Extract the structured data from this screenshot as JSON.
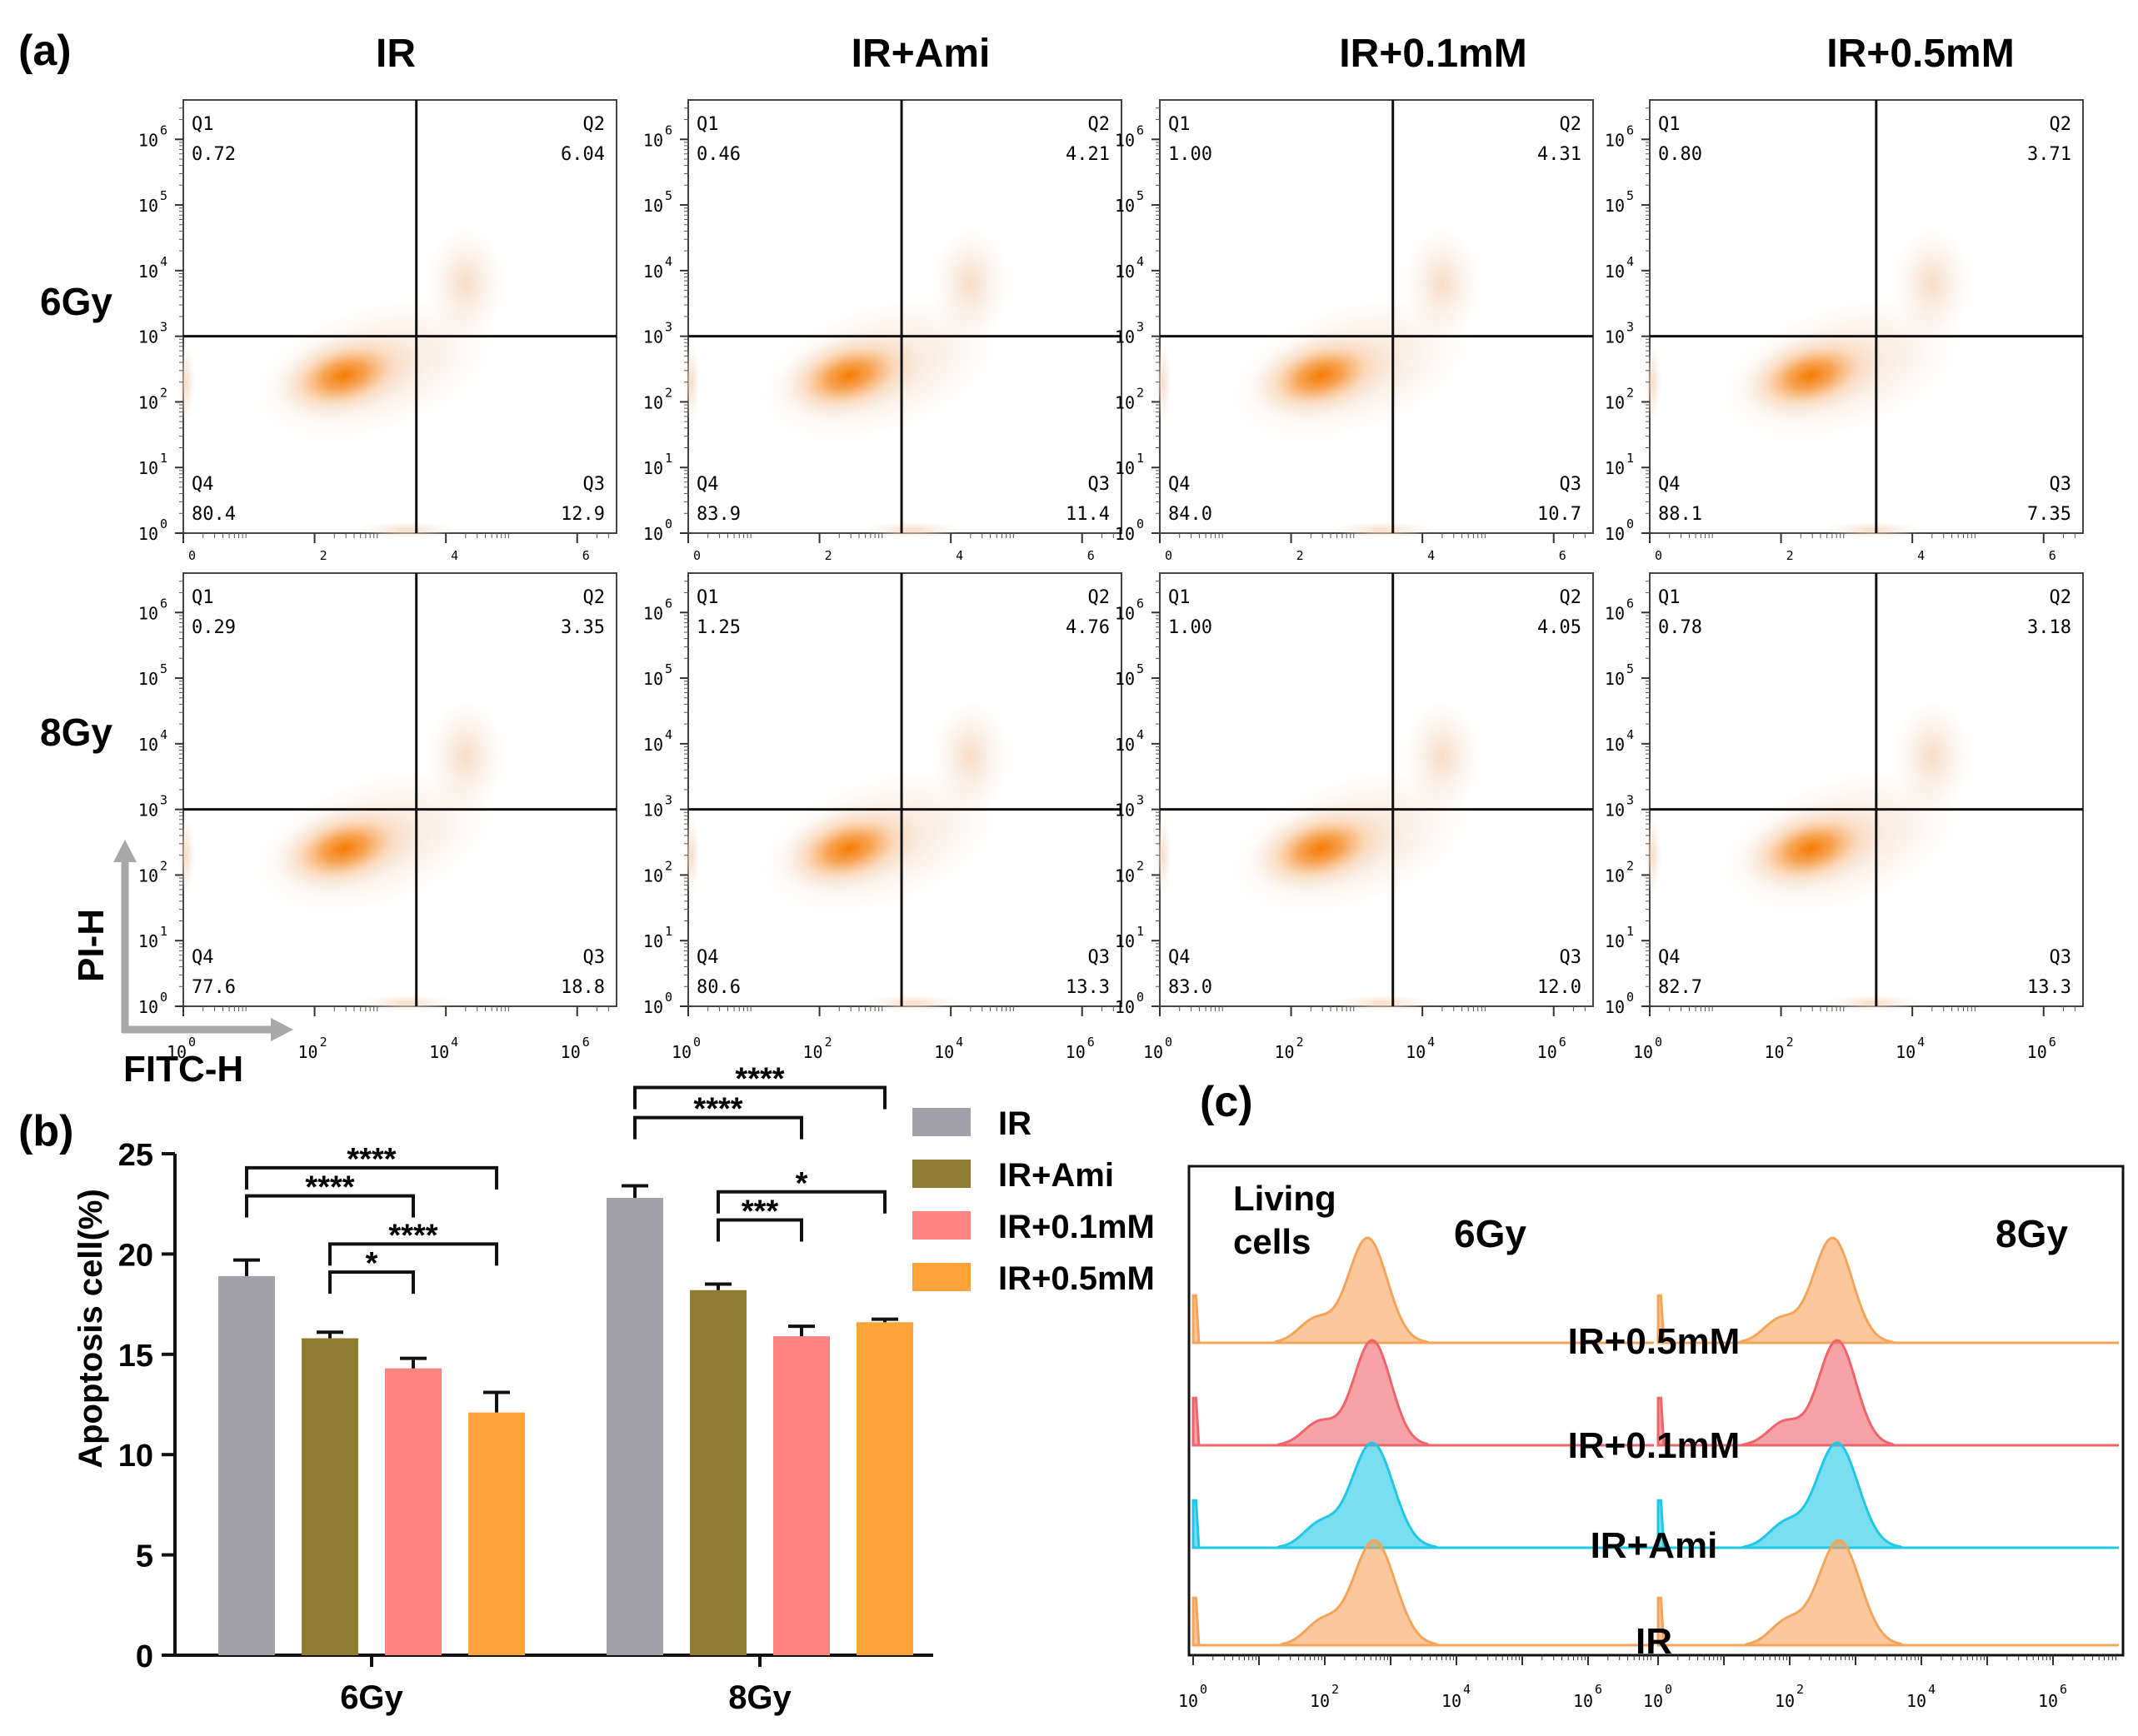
{
  "panel_labels": {
    "a": "(a)",
    "b": "(b)",
    "c": "(c)"
  },
  "flow": {
    "columns": [
      "IR",
      "IR+Ami",
      "IR+0.1mM",
      "IR+0.5mM"
    ],
    "rows": [
      "6Gy",
      "8Gy"
    ],
    "quadrant_names": [
      "Q1",
      "Q2",
      "Q3",
      "Q4"
    ],
    "axis": {
      "x_label": "FITC-H",
      "y_label": "PI-H"
    },
    "tick_labels": [
      "10",
      "10",
      "10",
      "10"
    ],
    "tick_exponents": [
      "0",
      "2",
      "4",
      "6"
    ],
    "y_tick_exponents": [
      "0",
      "1",
      "2",
      "3",
      "4",
      "5",
      "6"
    ],
    "gate_x": 3.55,
    "gate_y": 3.0,
    "plots": [
      [
        {
          "Q1": "0.72",
          "Q2": "6.04",
          "Q3": "12.9",
          "Q4": "80.4"
        },
        {
          "Q1": "0.46",
          "Q2": "4.21",
          "Q3": "11.4",
          "Q4": "83.9"
        },
        {
          "Q1": "1.00",
          "Q2": "4.31",
          "Q3": "10.7",
          "Q4": "84.0"
        },
        {
          "Q1": "0.80",
          "Q2": "3.71",
          "Q3": "7.35",
          "Q4": "88.1"
        }
      ],
      [
        {
          "Q1": "0.29",
          "Q2": "3.35",
          "Q3": "18.8",
          "Q4": "77.6"
        },
        {
          "Q1": "1.25",
          "Q2": "4.76",
          "Q3": "13.3",
          "Q4": "80.6"
        },
        {
          "Q1": "1.00",
          "Q2": "4.05",
          "Q3": "12.0",
          "Q4": "83.0"
        },
        {
          "Q1": "0.78",
          "Q2": "3.18",
          "Q3": "13.3",
          "Q4": "82.7"
        }
      ]
    ],
    "density_color": "#f57c00"
  },
  "chart_data": [
    {
      "type": "bar",
      "title": "",
      "xlabel": "",
      "ylabel": "Apoptosis cell(%)",
      "ylim": [
        0,
        25
      ],
      "yticks": [
        0,
        5,
        10,
        15,
        20,
        25
      ],
      "categories": [
        "6Gy",
        "8Gy"
      ],
      "series": [
        {
          "name": "IR",
          "color": "#a3a1a8",
          "values": [
            18.9,
            22.8
          ],
          "errors": [
            0.8,
            0.6
          ]
        },
        {
          "name": "IR+Ami",
          "color": "#8f7c30",
          "values": [
            15.8,
            18.2
          ],
          "errors": [
            0.3,
            0.3
          ]
        },
        {
          "name": "IR+0.1mM",
          "color": "#fe8383",
          "values": [
            14.3,
            15.9
          ],
          "errors": [
            0.5,
            0.5
          ]
        },
        {
          "name": "IR+0.5mM",
          "color": "#fda33a",
          "values": [
            12.1,
            16.6
          ],
          "errors": [
            1.0,
            0.15
          ]
        }
      ],
      "significance": [
        {
          "group": "6Gy",
          "from": "IR",
          "to": "IR+0.5mM",
          "label": "****",
          "y": 24.3
        },
        {
          "group": "6Gy",
          "from": "IR",
          "to": "IR+0.1mM",
          "label": "****",
          "y": 22.9
        },
        {
          "group": "6Gy",
          "from": "IR+Ami",
          "to": "IR+0.5mM",
          "label": "****",
          "y": 20.5
        },
        {
          "group": "6Gy",
          "from": "IR+Ami",
          "to": "IR+0.1mM",
          "label": "*",
          "y": 19.1
        },
        {
          "group": "8Gy",
          "from": "IR",
          "to": "IR+0.5mM",
          "label": "****",
          "y": 28.3
        },
        {
          "group": "8Gy",
          "from": "IR",
          "to": "IR+0.1mM",
          "label": "****",
          "y": 26.8
        },
        {
          "group": "8Gy",
          "from": "IR+Ami",
          "to": "IR+0.5mM",
          "label": "*",
          "y": 23.1
        },
        {
          "group": "8Gy",
          "from": "IR+Ami",
          "to": "IR+0.1mM",
          "label": "***",
          "y": 21.7
        }
      ]
    },
    {
      "type": "area",
      "title": "Living cells",
      "xlabel": "",
      "ylabel": "",
      "x_scale": "log",
      "xlim": [
        0,
        7
      ],
      "panels": [
        "6Gy",
        "8Gy"
      ],
      "traces": [
        {
          "name": "IR+0.5mM",
          "color": "#f6a45a",
          "peak_log": 2.65,
          "width": 0.42
        },
        {
          "name": "IR+0.1mM",
          "color": "#f0646a",
          "peak_log": 2.72,
          "width": 0.4
        },
        {
          "name": "IR+Ami",
          "color": "#1ec8e6",
          "peak_log": 2.72,
          "width": 0.45
        },
        {
          "name": "IR",
          "color": "#f6a45a",
          "peak_log": 2.75,
          "width": 0.45
        }
      ]
    }
  ]
}
